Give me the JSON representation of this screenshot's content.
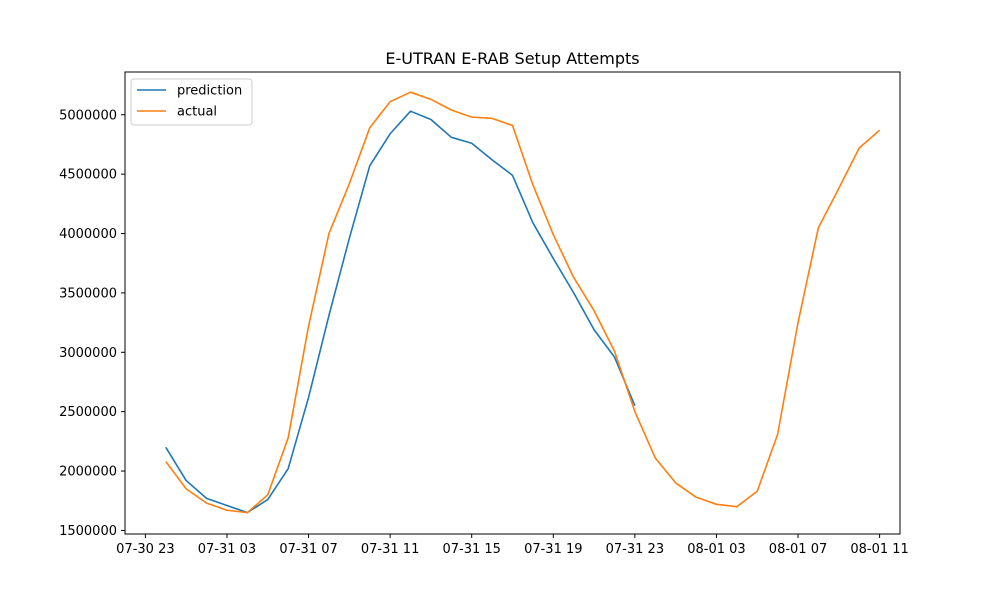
{
  "chart_data": {
    "type": "line",
    "title": "E-UTRAN E-RAB Setup Attempts",
    "xlabel": "",
    "ylabel": "",
    "x_tick_labels": [
      "07-30 23",
      "07-31 03",
      "07-31 07",
      "07-31 11",
      "07-31 15",
      "07-31 19",
      "07-31 23",
      "08-01 03",
      "08-01 07",
      "08-01 11"
    ],
    "y_tick_labels": [
      "1500000",
      "2000000",
      "2500000",
      "3000000",
      "3500000",
      "4000000",
      "4500000",
      "5000000"
    ],
    "y_ticks": [
      1500000,
      2000000,
      2500000,
      3000000,
      3500000,
      4000000,
      4500000,
      5000000
    ],
    "ylim": [
      1470000,
      5360000
    ],
    "xlim": [
      "07-30 22:00",
      "08-01 12:00"
    ],
    "legend": "upper-left",
    "grid": false,
    "series": [
      {
        "name": "prediction",
        "color": "#1f77b4",
        "points": [
          [
            "07-31 00:00",
            2200000
          ],
          [
            "07-31 01:00",
            1920000
          ],
          [
            "07-31 02:00",
            1770000
          ],
          [
            "07-31 03:00",
            1710000
          ],
          [
            "07-31 04:00",
            1650000
          ],
          [
            "07-31 05:00",
            1760000
          ],
          [
            "07-31 06:00",
            2020000
          ],
          [
            "07-31 07:00",
            2620000
          ],
          [
            "07-31 08:00",
            3310000
          ],
          [
            "07-31 09:00",
            3960000
          ],
          [
            "07-31 10:00",
            4570000
          ],
          [
            "07-31 11:00",
            4840000
          ],
          [
            "07-31 12:00",
            5030000
          ],
          [
            "07-31 13:00",
            4960000
          ],
          [
            "07-31 14:00",
            4810000
          ],
          [
            "07-31 15:00",
            4760000
          ],
          [
            "07-31 16:00",
            4620000
          ],
          [
            "07-31 17:00",
            4490000
          ],
          [
            "07-31 18:00",
            4090000
          ],
          [
            "07-31 19:00",
            3790000
          ],
          [
            "07-31 20:00",
            3500000
          ],
          [
            "07-31 21:00",
            3190000
          ],
          [
            "07-31 22:00",
            2960000
          ],
          [
            "07-31 23:00",
            2550000
          ]
        ]
      },
      {
        "name": "actual",
        "color": "#ff7f0e",
        "points": [
          [
            "07-31 00:00",
            2080000
          ],
          [
            "07-31 01:00",
            1850000
          ],
          [
            "07-31 02:00",
            1730000
          ],
          [
            "07-31 03:00",
            1670000
          ],
          [
            "07-31 04:00",
            1650000
          ],
          [
            "07-31 05:00",
            1800000
          ],
          [
            "07-31 06:00",
            2280000
          ],
          [
            "07-31 07:00",
            3220000
          ],
          [
            "07-31 08:00",
            4000000
          ],
          [
            "07-31 09:00",
            4420000
          ],
          [
            "07-31 10:00",
            4890000
          ],
          [
            "07-31 11:00",
            5110000
          ],
          [
            "07-31 12:00",
            5190000
          ],
          [
            "07-31 13:00",
            5130000
          ],
          [
            "07-31 14:00",
            5040000
          ],
          [
            "07-31 15:00",
            4980000
          ],
          [
            "07-31 16:00",
            4970000
          ],
          [
            "07-31 17:00",
            4910000
          ],
          [
            "07-31 18:00",
            4410000
          ],
          [
            "07-31 19:00",
            3990000
          ],
          [
            "07-31 20:00",
            3630000
          ],
          [
            "07-31 21:00",
            3350000
          ],
          [
            "07-31 22:00",
            3010000
          ],
          [
            "07-31 23:00",
            2500000
          ],
          [
            "08-01 00:00",
            2110000
          ],
          [
            "08-01 01:00",
            1900000
          ],
          [
            "08-01 02:00",
            1780000
          ],
          [
            "08-01 03:00",
            1720000
          ],
          [
            "08-01 04:00",
            1700000
          ],
          [
            "08-01 05:00",
            1830000
          ],
          [
            "08-01 06:00",
            2310000
          ],
          [
            "08-01 07:00",
            3250000
          ],
          [
            "08-01 08:00",
            4050000
          ],
          [
            "08-01 09:00",
            4380000
          ],
          [
            "08-01 10:00",
            4720000
          ],
          [
            "08-01 11:00",
            4870000
          ]
        ]
      }
    ]
  }
}
